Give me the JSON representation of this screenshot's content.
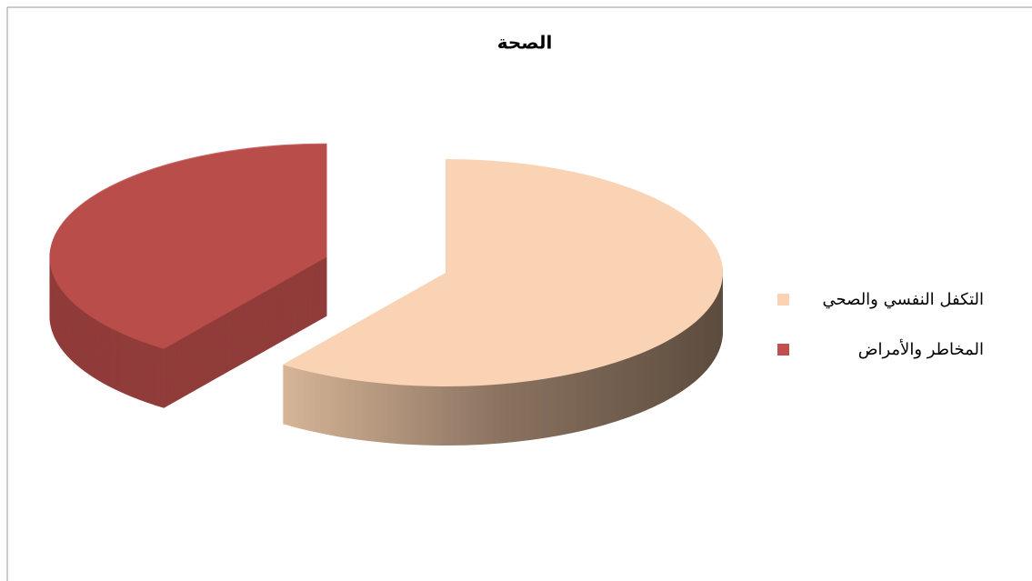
{
  "chart_data": {
    "type": "pie3d",
    "title": "الصحة",
    "categories": [
      "التكفل النفسي والصحي",
      "المخاطر والأمراض"
    ],
    "values": [
      60,
      40
    ],
    "colors": [
      "#f9d3b3",
      "#c0504d"
    ],
    "exploded": [
      false,
      true
    ],
    "legend": "right"
  }
}
